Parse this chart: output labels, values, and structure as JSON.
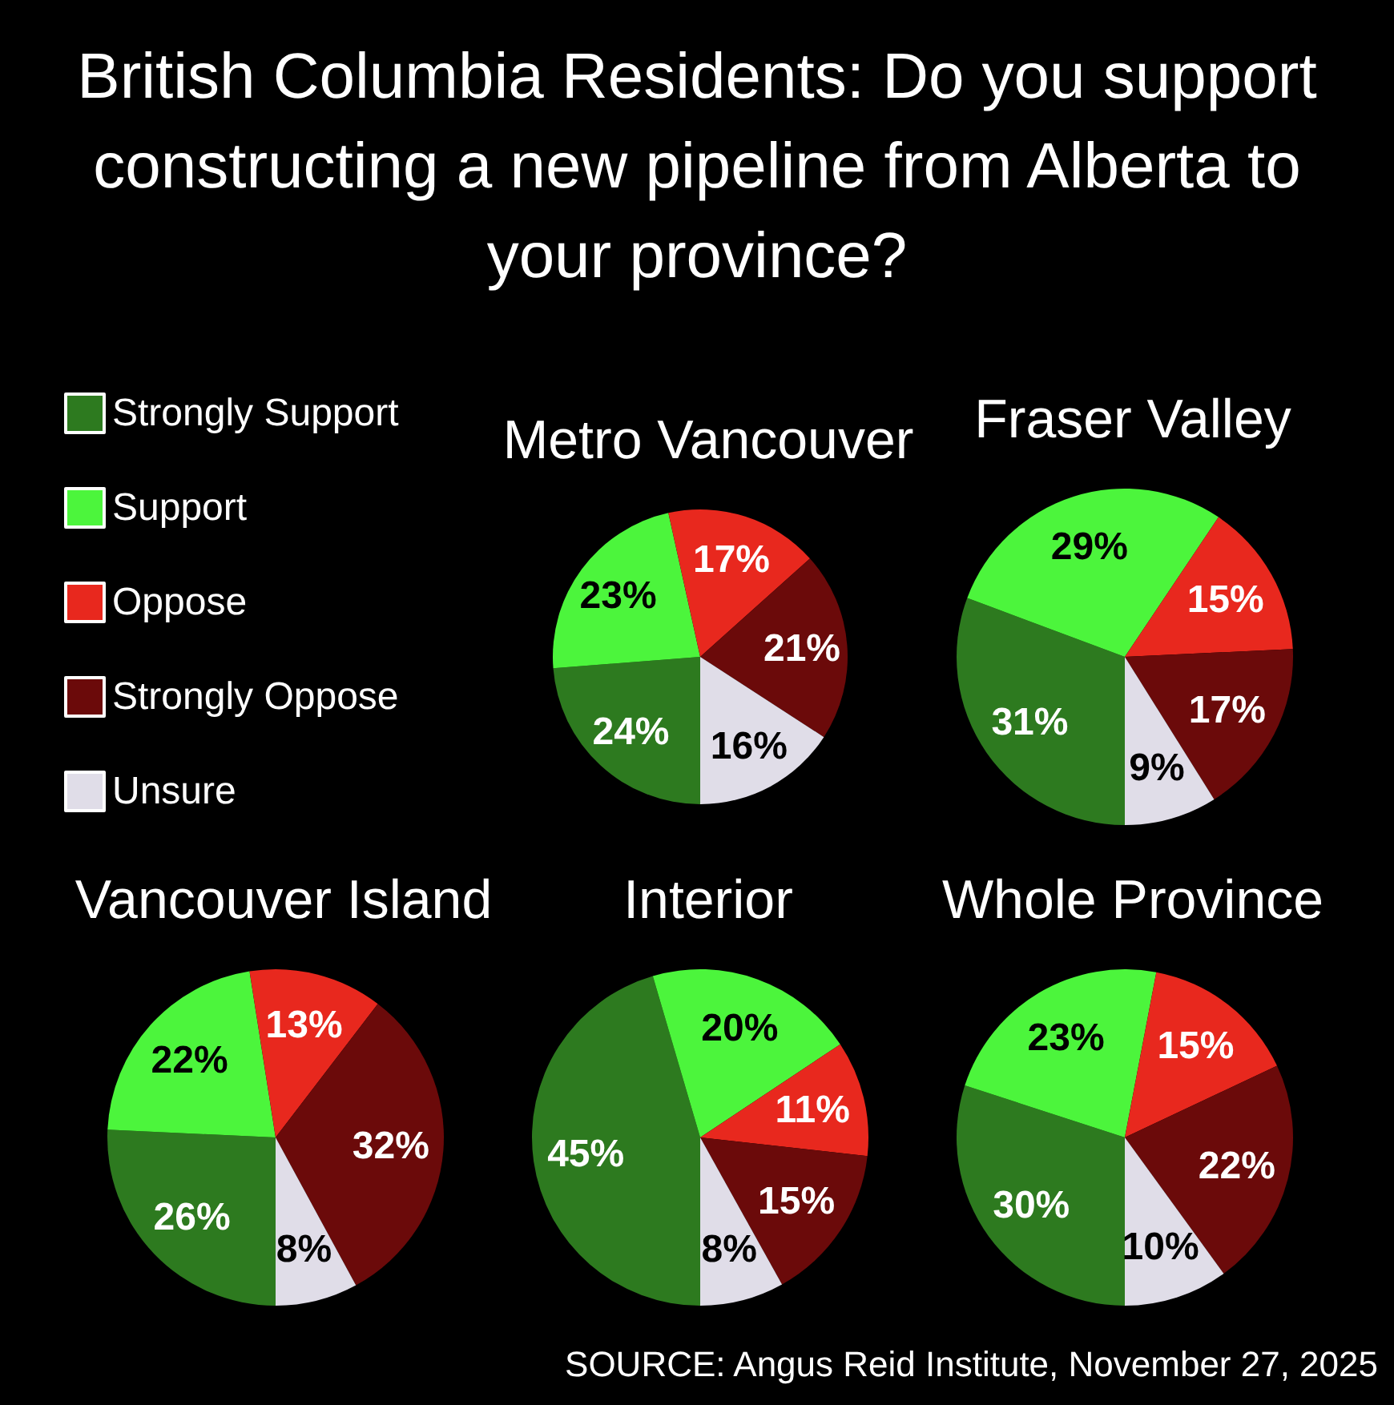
{
  "chart_data": [
    {
      "type": "other",
      "title": "British Columbia Residents: Do you support constructing a new pipeline from Alberta to your province?"
    },
    {
      "type": "pie",
      "title": "Metro Vancouver",
      "legend": "left",
      "categories": [
        "Strongly Support",
        "Support",
        "Oppose",
        "Strongly Oppose",
        "Unsure"
      ],
      "colors": [
        "#2d7a1f",
        "#4cf53c",
        "#e8281e",
        "#6b0a0a",
        "#e0dde8"
      ],
      "values": [
        24,
        23,
        17,
        21,
        16
      ],
      "value_labels": [
        "24%",
        "23%",
        "17%",
        "21%",
        "16%"
      ]
    },
    {
      "type": "pie",
      "title": "Fraser Valley",
      "categories": [
        null,
        null,
        null,
        null,
        null
      ],
      "colors": [
        "#2d7a1f",
        "#4cf53c",
        "#e8281e",
        "#6b0a0a",
        "#e0dde8"
      ],
      "values": [
        31,
        29,
        15,
        17,
        9
      ],
      "value_labels": [
        "31%",
        "29%",
        "15%",
        "17%",
        "9%"
      ]
    },
    {
      "type": "pie",
      "title": "Vancouver Island",
      "categories": [
        null,
        null,
        null,
        null,
        null
      ],
      "colors": [
        "#2d7a1f",
        "#4cf53c",
        "#e8281e",
        "#6b0a0a",
        "#e0dde8"
      ],
      "values": [
        26,
        22,
        13,
        32,
        8
      ],
      "value_labels": [
        "26%",
        "22%",
        "13%",
        "32%",
        "8%"
      ]
    },
    {
      "type": "pie",
      "title": "Interior",
      "categories": [
        null,
        null,
        null,
        null,
        null
      ],
      "colors": [
        "#2d7a1f",
        "#4cf53c",
        "#e8281e",
        "#6b0a0a",
        "#e0dde8"
      ],
      "values": [
        45,
        20,
        11,
        15,
        8
      ],
      "value_labels": [
        "45%",
        "20%",
        "11%",
        "15%",
        "8%"
      ]
    },
    {
      "type": "pie",
      "title": "Whole Province",
      "categories": [
        null,
        null,
        null,
        null,
        null
      ],
      "colors": [
        "#2d7a1f",
        "#4cf53c",
        "#e8281e",
        "#6b0a0a",
        "#e0dde8"
      ],
      "values": [
        30,
        23,
        15,
        22,
        10
      ],
      "value_labels": [
        "30%",
        "23%",
        "15%",
        "22%",
        "10%"
      ],
      "annotations": [
        "SOURCE: Angus Reid Institute, November 27, 2025"
      ]
    }
  ]
}
